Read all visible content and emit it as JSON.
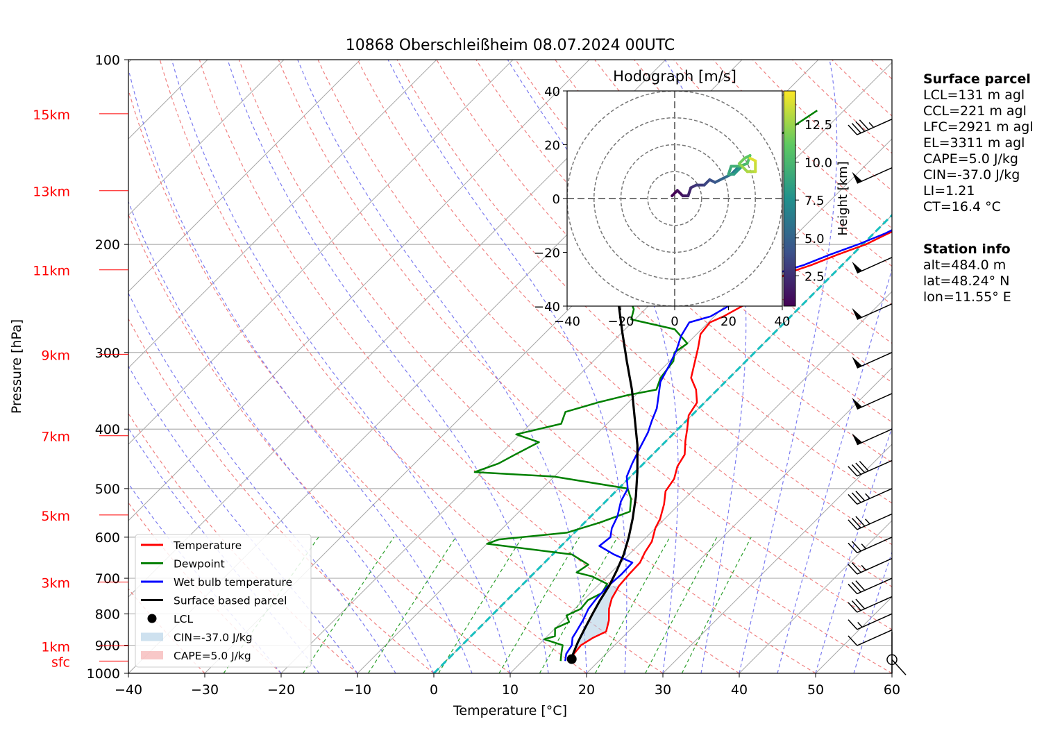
{
  "chart_data": [
    {
      "type": "line",
      "subtype": "skew-T log-P diagram",
      "title": "10868 Oberschleißheim 08.07.2024 00UTC",
      "xlabel": "Temperature [°C]",
      "ylabel": "Pressure [hPa]",
      "xlim": [
        -40,
        60
      ],
      "ylim": [
        1000,
        100
      ],
      "y_scale": "log",
      "x_ticks": [
        "−40",
        "−30",
        "−20",
        "−10",
        "0",
        "10",
        "20",
        "30",
        "40",
        "50",
        "60"
      ],
      "y_ticks": [
        "100",
        "200",
        "300",
        "400",
        "500",
        "600",
        "700",
        "800",
        "900",
        "1000"
      ],
      "y_tick_values": [
        100,
        200,
        300,
        400,
        500,
        600,
        700,
        800,
        900,
        1000
      ],
      "height_labels": [
        {
          "label": "15km",
          "p": 122.5
        },
        {
          "label": "13km",
          "p": 163.5
        },
        {
          "label": "11km",
          "p": 220
        },
        {
          "label": "9km",
          "p": 302
        },
        {
          "label": "7km",
          "p": 410
        },
        {
          "label": "5km",
          "p": 552
        },
        {
          "label": "3km",
          "p": 710
        },
        {
          "label": "1km",
          "p": 902
        },
        {
          "label": "sfc",
          "p": 955
        }
      ],
      "grid": true,
      "legend_position": "lower-left",
      "series": [
        {
          "name": "Temperature",
          "color": "#ff0000",
          "points": [
            [
              16.3,
              955
            ],
            [
              15.8,
              930
            ],
            [
              15.6,
              900
            ],
            [
              16.2,
              875
            ],
            [
              17.1,
              855
            ],
            [
              16.0,
              820
            ],
            [
              14.5,
              785
            ],
            [
              13.5,
              755
            ],
            [
              12.8,
              720
            ],
            [
              12.6,
              690
            ],
            [
              12.5,
              660
            ],
            [
              11.8,
              635
            ],
            [
              11.3,
              610
            ],
            [
              10.0,
              580
            ],
            [
              9.4,
              560
            ],
            [
              8.0,
              530
            ],
            [
              6.5,
              505
            ],
            [
              6.0,
              482
            ],
            [
              4.8,
              460
            ],
            [
              4.2,
              440
            ],
            [
              2.5,
              418
            ],
            [
              1.2,
              400
            ],
            [
              -0.4,
              380
            ],
            [
              -1.0,
              362
            ],
            [
              -2.8,
              345
            ],
            [
              -5.0,
              330
            ],
            [
              -6.5,
              312
            ],
            [
              -8.0,
              295
            ],
            [
              -9.5,
              280
            ],
            [
              -9.8,
              268
            ],
            [
              -8.8,
              262
            ],
            [
              -7.7,
              252
            ],
            [
              -7.2,
              242
            ],
            [
              -6.7,
              232
            ],
            [
              -6.2,
              223
            ],
            [
              -4.0,
              216
            ],
            [
              -2.0,
              208
            ],
            [
              0.4,
              200
            ],
            [
              1.7,
              193
            ],
            [
              3.2,
              186
            ],
            [
              4.3,
              179
            ],
            [
              3.9,
              173
            ],
            [
              4.5,
              167
            ],
            [
              4.3,
              160
            ],
            [
              3.5,
              152
            ],
            [
              3.2,
              145
            ],
            [
              2.7,
              139
            ],
            [
              3.2,
              133
            ],
            [
              4.7,
              129
            ],
            [
              5.7,
              126
            ],
            [
              6.2,
              123
            ],
            [
              6.4,
              121
            ]
          ]
        },
        {
          "name": "Dewpoint",
          "color": "#008000",
          "points": [
            [
              15.0,
              955
            ],
            [
              14.0,
              925
            ],
            [
              13.2,
              900
            ],
            [
              10.0,
              880
            ],
            [
              11.0,
              870
            ],
            [
              10.0,
              845
            ],
            [
              11.0,
              825
            ],
            [
              9.8,
              805
            ],
            [
              10.8,
              785
            ],
            [
              10.6,
              760
            ],
            [
              11.5,
              740
            ],
            [
              11.0,
              715
            ],
            [
              8.0,
              695
            ],
            [
              5.5,
              685
            ],
            [
              6.0,
              665
            ],
            [
              2.5,
              640
            ],
            [
              -10.0,
              615
            ],
            [
              -9.0,
              605
            ],
            [
              -1.0,
              590
            ],
            [
              2.0,
              568
            ],
            [
              4.5,
              545
            ],
            [
              3.0,
              520
            ],
            [
              1.2,
              500
            ],
            [
              -10.0,
              478
            ],
            [
              -21.0,
              470
            ],
            [
              -19.0,
              455
            ],
            [
              -18.0,
              440
            ],
            [
              -16.5,
              420
            ],
            [
              -20.5,
              408
            ],
            [
              -16.0,
              392
            ],
            [
              -17.0,
              375
            ],
            [
              -14.0,
              362
            ],
            [
              -11.0,
              352
            ],
            [
              -8.0,
              345
            ],
            [
              -9.0,
              330
            ],
            [
              -9.5,
              310
            ],
            [
              -10.5,
              300
            ],
            [
              -10.0,
              290
            ],
            [
              -13.5,
              275
            ],
            [
              -20.5,
              265
            ],
            [
              -21.5,
              255
            ],
            [
              -23.5,
              245
            ],
            [
              -25.0,
              230
            ],
            [
              -26.0,
              215
            ],
            [
              -27.5,
              200
            ],
            [
              -28.5,
              182
            ],
            [
              -29.5,
              168
            ],
            [
              -28.0,
              150
            ],
            [
              -26.0,
              138
            ],
            [
              -24.5,
              128
            ],
            [
              -23.5,
              121
            ]
          ]
        },
        {
          "name": "Wet bulb temperature",
          "color": "#0000ff",
          "points": [
            [
              15.6,
              955
            ],
            [
              14.8,
              930
            ],
            [
              14.4,
              900
            ],
            [
              13.5,
              875
            ],
            [
              13.2,
              855
            ],
            [
              12.6,
              820
            ],
            [
              11.8,
              785
            ],
            [
              11.5,
              755
            ],
            [
              11.4,
              720
            ],
            [
              11.6,
              690
            ],
            [
              11.5,
              660
            ],
            [
              8.0,
              640
            ],
            [
              5.0,
              620
            ],
            [
              5.3,
              600
            ],
            [
              4.3,
              580
            ],
            [
              3.5,
              555
            ],
            [
              2.0,
              525
            ],
            [
              1.2,
              500
            ],
            [
              -0.5,
              478
            ],
            [
              -1.5,
              455
            ],
            [
              -2.5,
              430
            ],
            [
              -3.5,
              405
            ],
            [
              -4.5,
              388
            ],
            [
              -5.5,
              370
            ],
            [
              -7.0,
              352
            ],
            [
              -8.5,
              335
            ],
            [
              -9.5,
              315
            ],
            [
              -10.5,
              298
            ],
            [
              -11.8,
              282
            ],
            [
              -12.5,
              268
            ],
            [
              -10.5,
              262
            ],
            [
              -9.5,
              252
            ],
            [
              -8.8,
              242
            ],
            [
              -8.3,
              232
            ],
            [
              -7.5,
              223
            ],
            [
              -5.0,
              216
            ],
            [
              -3.0,
              208
            ],
            [
              -0.6,
              200
            ],
            [
              1.5,
              192
            ],
            [
              3.0,
              184
            ],
            [
              3.5,
              175
            ],
            [
              4.5,
              168
            ],
            [
              4.0,
              160
            ],
            [
              3.0,
              152
            ],
            [
              2.8,
              145
            ],
            [
              2.2,
              138
            ],
            [
              2.8,
              132
            ],
            [
              4.2,
              128
            ],
            [
              5.2,
              125
            ],
            [
              6.0,
              122
            ],
            [
              6.4,
              121
            ]
          ]
        },
        {
          "name": "Surface based parcel",
          "color": "#000000",
          "points": [
            [
              16.3,
              955
            ],
            [
              15.7,
              930
            ],
            [
              14.8,
              890
            ],
            [
              13.8,
              840
            ],
            [
              13.0,
              800
            ],
            [
              12.2,
              760
            ],
            [
              11.5,
              720
            ],
            [
              10.5,
              680
            ],
            [
              9.3,
              640
            ],
            [
              7.7,
              600
            ],
            [
              5.8,
              560
            ],
            [
              3.3,
              515
            ],
            [
              0.3,
              470
            ],
            [
              -3.2,
              425
            ],
            [
              -7.0,
              385
            ],
            [
              -11.2,
              345
            ],
            [
              -15.6,
              310
            ],
            [
              -20.0,
              278
            ],
            [
              -24.5,
              248
            ],
            [
              -29.0,
              222
            ],
            [
              -33.5,
              198
            ],
            [
              -38.0,
              176
            ],
            [
              -42.5,
              156
            ],
            [
              -47.0,
              138
            ],
            [
              -51.5,
              122
            ]
          ]
        }
      ],
      "lcl": {
        "name": "LCL",
        "t": 16.2,
        "p": 948
      },
      "cin_label": "CIN=-37.0 J/kg",
      "cape_label": "CAPE=5.0 J/kg",
      "isotherm_0": "cyan dashed",
      "wind_barbs": [
        {
          "p": 125,
          "speed_kt": 45,
          "dir": 240
        },
        {
          "p": 150,
          "speed_kt": 50,
          "dir": 240
        },
        {
          "p": 210,
          "speed_kt": 50,
          "dir": 240
        },
        {
          "p": 250,
          "speed_kt": 50,
          "dir": 240
        },
        {
          "p": 300,
          "speed_kt": 50,
          "dir": 240
        },
        {
          "p": 350,
          "speed_kt": 50,
          "dir": 240
        },
        {
          "p": 400,
          "speed_kt": 50,
          "dir": 240
        },
        {
          "p": 450,
          "speed_kt": 40,
          "dir": 240
        },
        {
          "p": 500,
          "speed_kt": 35,
          "dir": 240
        },
        {
          "p": 550,
          "speed_kt": 35,
          "dir": 240
        },
        {
          "p": 600,
          "speed_kt": 25,
          "dir": 240
        },
        {
          "p": 650,
          "speed_kt": 25,
          "dir": 240
        },
        {
          "p": 700,
          "speed_kt": 30,
          "dir": 240
        },
        {
          "p": 750,
          "speed_kt": 30,
          "dir": 240
        },
        {
          "p": 800,
          "speed_kt": 15,
          "dir": 240
        },
        {
          "p": 850,
          "speed_kt": 10,
          "dir": 250
        },
        {
          "p": 950,
          "speed_kt": 0,
          "dir": 0
        }
      ],
      "hodograph": {
        "title": "Hodograph [m/s]",
        "xlim": [
          -40,
          40
        ],
        "ylim": [
          -40,
          40
        ],
        "x_ticks": [
          "−40",
          "−20",
          "0",
          "20",
          "40"
        ],
        "y_ticks": [
          "−40",
          "−20",
          "0",
          "20",
          "40"
        ],
        "ring_radii": [
          10,
          20,
          30,
          40
        ],
        "colorbar_label": "Height [km]",
        "colorbar_ticks": [
          "2.5",
          "5.0",
          "7.5",
          "10.0",
          "12.5"
        ],
        "colorbar_range": [
          0.5,
          14.7
        ],
        "points": [
          [
            -1,
            1,
            0.5
          ],
          [
            1,
            3,
            1.0
          ],
          [
            3,
            1,
            1.5
          ],
          [
            5,
            1,
            2.0
          ],
          [
            6,
            4,
            2.5
          ],
          [
            8,
            5,
            3.0
          ],
          [
            11,
            5,
            3.5
          ],
          [
            13,
            7,
            4.0
          ],
          [
            15,
            6,
            4.5
          ],
          [
            17,
            7,
            5.0
          ],
          [
            19,
            8,
            5.5
          ],
          [
            21,
            9,
            6.0
          ],
          [
            22,
            10,
            6.5
          ],
          [
            23,
            11,
            7.0
          ],
          [
            24,
            11,
            7.5
          ],
          [
            25,
            12,
            8.0
          ],
          [
            22,
            9,
            8.5
          ],
          [
            20,
            9,
            9.0
          ],
          [
            21,
            12,
            9.5
          ],
          [
            24,
            12,
            10.0
          ],
          [
            27,
            13,
            10.5
          ],
          [
            28,
            16,
            11.0
          ],
          [
            26,
            15,
            11.5
          ],
          [
            24,
            13,
            12.0
          ],
          [
            25,
            12,
            12.5
          ],
          [
            27,
            10,
            13.0
          ],
          [
            30,
            10,
            13.5
          ],
          [
            30,
            14,
            14.0
          ],
          [
            28,
            15,
            14.5
          ]
        ]
      }
    }
  ],
  "info": {
    "surface_title": "Surface parcel",
    "surface_lines": [
      "LCL=131 m agl",
      "CCL=221 m agl",
      "LFC=2921 m agl",
      "EL=3311 m agl",
      "CAPE=5.0 J/kg",
      "CIN=-37.0 J/kg",
      "LI=1.21",
      "CT=16.4 °C"
    ],
    "station_title": "Station info",
    "station_lines": [
      "alt=484.0 m",
      "lat=48.24° N",
      "lon=11.55° E"
    ]
  }
}
